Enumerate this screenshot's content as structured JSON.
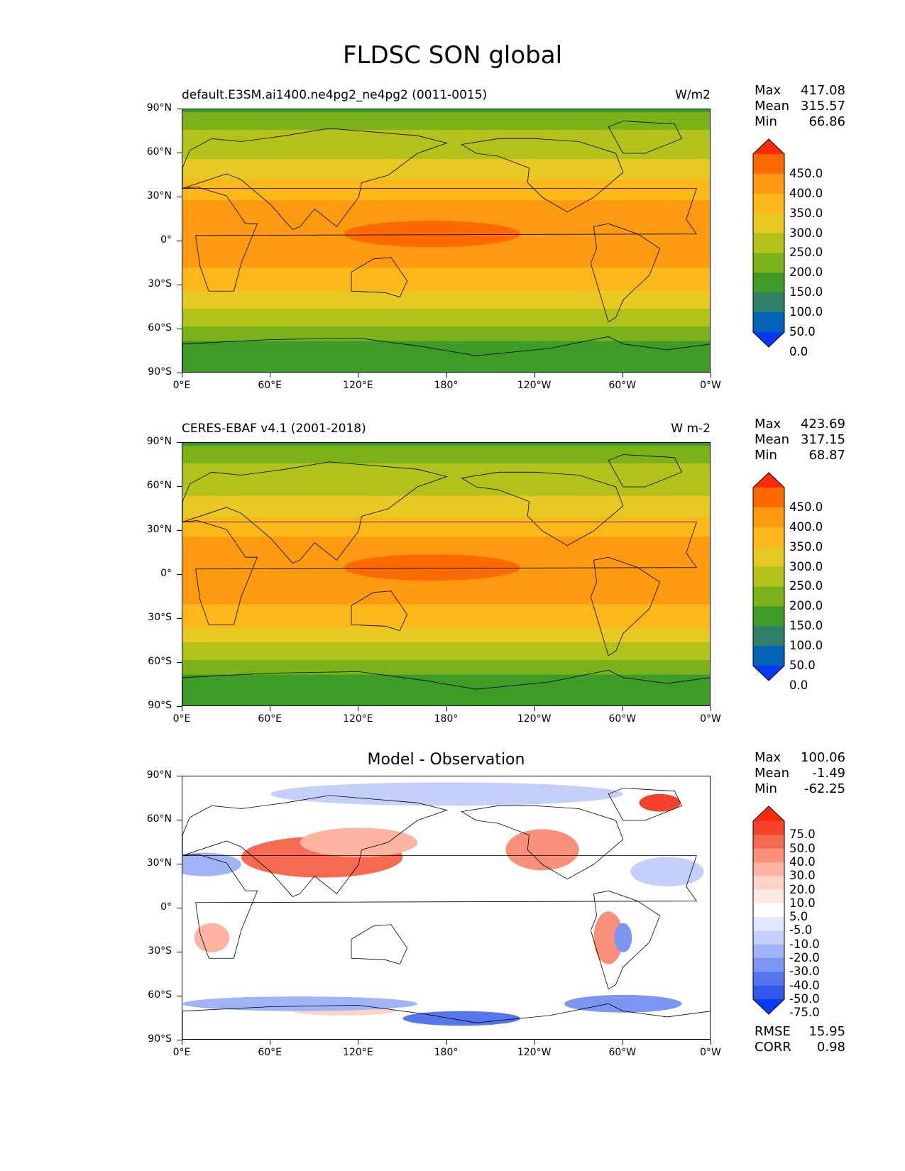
{
  "figure": {
    "title": "FLDSC SON global"
  },
  "axes": {
    "y_ticks": [
      "90°N",
      "60°N",
      "30°N",
      "0°",
      "30°S",
      "60°S",
      "90°S"
    ],
    "x_ticks": [
      "0°E",
      "60°E",
      "120°E",
      "180°",
      "120°W",
      "60°W",
      "0°W"
    ]
  },
  "panels": [
    {
      "title_left": "default.E3SM.ai1400.ne4pg2_ne4pg2 (0011-0015)",
      "title_right": "W/m2",
      "stats": [
        {
          "label": "Max",
          "value": "417.08"
        },
        {
          "label": "Mean",
          "value": "315.57"
        },
        {
          "label": "Min",
          "value": "66.86"
        }
      ],
      "colorbar": {
        "labels": [
          "450.0",
          "400.0",
          "350.0",
          "300.0",
          "250.0",
          "200.0",
          "150.0",
          "100.0",
          "50.0",
          "0.0"
        ],
        "colors": [
          "#ff2a0a",
          "#ff6a00",
          "#fd9a0f",
          "#fbb818",
          "#e8c923",
          "#b3c21a",
          "#7bb21a",
          "#3f9b28",
          "#2e8168",
          "#0462b9",
          "#0739f7"
        ]
      }
    },
    {
      "title_left": "CERES-EBAF v4.1 (2001-2018)",
      "title_right": "W m-2",
      "stats": [
        {
          "label": "Max",
          "value": "423.69"
        },
        {
          "label": "Mean",
          "value": "317.15"
        },
        {
          "label": "Min",
          "value": "68.87"
        }
      ],
      "colorbar": {
        "labels": [
          "450.0",
          "400.0",
          "350.0",
          "300.0",
          "250.0",
          "200.0",
          "150.0",
          "100.0",
          "50.0",
          "0.0"
        ],
        "colors": [
          "#ff2a0a",
          "#ff6a00",
          "#fd9a0f",
          "#fbb818",
          "#e8c923",
          "#b3c21a",
          "#7bb21a",
          "#3f9b28",
          "#2e8168",
          "#0462b9",
          "#0739f7"
        ]
      }
    },
    {
      "title_center": "Model - Observation",
      "stats": [
        {
          "label": "Max",
          "value": "100.06"
        },
        {
          "label": "Mean",
          "value": "-1.49"
        },
        {
          "label": "Min",
          "value": "-62.25"
        }
      ],
      "colorbar": {
        "labels": [
          "75.0",
          "50.0",
          "40.0",
          "30.0",
          "20.0",
          "10.0",
          "5.0",
          "-5.0",
          "-10.0",
          "-20.0",
          "-30.0",
          "-40.0",
          "-50.0",
          "-75.0"
        ],
        "colors": [
          "#ff2a0a",
          "#f5432b",
          "#f76a52",
          "#fa9079",
          "#fcb3a0",
          "#fdd3c6",
          "#fdeae4",
          "#ffffff",
          "#e1e7fc",
          "#c4d0fa",
          "#a0b3f6",
          "#7b95f2",
          "#5676ee",
          "#3359ec",
          "#0b3af2"
        ]
      },
      "extra_stats": [
        {
          "label": "RMSE",
          "value": "15.95"
        },
        {
          "label": "CORR",
          "value": "0.98"
        }
      ]
    }
  ],
  "chart_data": [
    {
      "type": "heatmap",
      "title": "default.E3SM.ai1400.ne4pg2_ne4pg2 (0011-0015)",
      "units": "W/m2",
      "xlim": [
        0,
        360
      ],
      "ylim": [
        -90,
        90
      ],
      "x_ticks": [
        0,
        60,
        120,
        180,
        240,
        300,
        360
      ],
      "y_ticks": [
        90,
        60,
        30,
        0,
        -30,
        -60,
        -90
      ],
      "levels": [
        0,
        50,
        100,
        150,
        200,
        250,
        300,
        350,
        400,
        450
      ],
      "zonal_profile": {
        "lat": [
          90,
          75,
          60,
          45,
          30,
          15,
          0,
          -15,
          -30,
          -45,
          -60,
          -75,
          -90
        ],
        "value": [
          140,
          205,
          235,
          285,
          345,
          375,
          385,
          360,
          320,
          255,
          190,
          110,
          100
        ]
      },
      "stats": {
        "max": 417.08,
        "mean": 315.57,
        "min": 66.86
      }
    },
    {
      "type": "heatmap",
      "title": "CERES-EBAF v4.1 (2001-2018)",
      "units": "W m-2",
      "xlim": [
        0,
        360
      ],
      "ylim": [
        -90,
        90
      ],
      "x_ticks": [
        0,
        60,
        120,
        180,
        240,
        300,
        360
      ],
      "y_ticks": [
        90,
        60,
        30,
        0,
        -30,
        -60,
        -90
      ],
      "levels": [
        0,
        50,
        100,
        150,
        200,
        250,
        300,
        350,
        400,
        450
      ],
      "zonal_profile": {
        "lat": [
          90,
          75,
          60,
          45,
          30,
          15,
          0,
          -15,
          -30,
          -45,
          -60,
          -75,
          -90
        ],
        "value": [
          145,
          200,
          230,
          280,
          340,
          380,
          390,
          365,
          325,
          255,
          195,
          115,
          100
        ]
      },
      "stats": {
        "max": 423.69,
        "mean": 317.15,
        "min": 68.87
      }
    },
    {
      "type": "heatmap",
      "title": "Model - Observation",
      "xlim": [
        0,
        360
      ],
      "ylim": [
        -90,
        90
      ],
      "x_ticks": [
        0,
        60,
        120,
        180,
        240,
        300,
        360
      ],
      "y_ticks": [
        90,
        60,
        30,
        0,
        -30,
        -60,
        -90
      ],
      "levels": [
        -75,
        -50,
        -40,
        -30,
        -20,
        -10,
        -5,
        5,
        10,
        20,
        30,
        40,
        50,
        75
      ],
      "stats": {
        "max": 100.06,
        "mean": -1.49,
        "min": -62.25,
        "rmse": 15.95,
        "corr": 0.98
      }
    }
  ]
}
